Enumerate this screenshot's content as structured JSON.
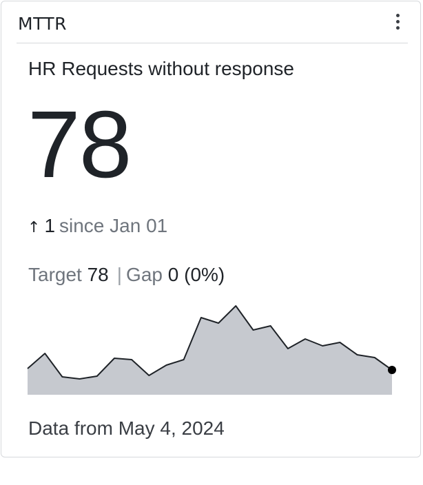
{
  "card": {
    "title": "MTTR",
    "menu_icon": "kebab-menu-icon",
    "metric_label": "HR Requests without response",
    "value": "78",
    "change": {
      "arrow_icon": "arrow-up-icon",
      "arrow_glyph": "↑",
      "amount": "1",
      "since_text": "since Jan 01"
    },
    "target": {
      "label": "Target",
      "value": "78",
      "separator": "|",
      "gap_label": "Gap",
      "gap_value": "0 (0%)"
    },
    "footer": "Data from May 4, 2024"
  },
  "colors": {
    "area_fill": "#c6c9cf",
    "line": "#1f2328",
    "endpoint": "#000000",
    "border": "#d6d8dc",
    "muted_text": "#6f757d"
  },
  "chart_data": {
    "type": "area",
    "values": [
      38,
      60,
      26,
      23,
      27,
      53,
      51,
      28,
      43,
      51,
      112,
      104,
      129,
      94,
      100,
      67,
      81,
      71,
      76,
      58,
      54,
      36
    ],
    "ylim": [
      0,
      140
    ]
  }
}
